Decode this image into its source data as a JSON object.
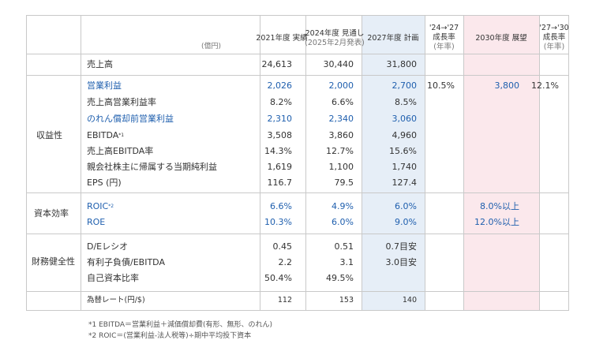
{
  "header": {
    "unit": "(億円)",
    "col1": "2021年度 実績",
    "col2_l1": "2024年度 見通し",
    "col2_l2": "(2025年2月発表)",
    "col3": "2027年度 計画",
    "col4_l1": "'24→'27",
    "col4_l2": "成長率",
    "col4_l3": "(年率)",
    "col5": "2030年度 展望",
    "col6_l1": "'27→'30",
    "col6_l2": "成長率",
    "col6_l3": "(年率)"
  },
  "sales": {
    "label": "売上高",
    "v1": "24,613",
    "v2": "30,440",
    "v3": "31,800"
  },
  "profitability": {
    "group": "収益性",
    "rows": [
      {
        "label": "営業利益",
        "v1": "2,026",
        "v2": "2,000",
        "v3": "2,700",
        "v4": "10.5%",
        "v5": "3,800",
        "v6": "12.1%"
      },
      {
        "label": "売上高営業利益率",
        "v1": "8.2%",
        "v2": "6.6%",
        "v3": "8.5%"
      },
      {
        "label": "のれん償却前営業利益",
        "v1": "2,310",
        "v2": "2,340",
        "v3": "3,060"
      },
      {
        "label": "EBITDA",
        "sup": "*1",
        "v1": "3,508",
        "v2": "3,860",
        "v3": "4,960"
      },
      {
        "label": "売上高EBITDA率",
        "v1": "14.3%",
        "v2": "12.7%",
        "v3": "15.6%"
      },
      {
        "label": "親会社株主に帰属する当期純利益",
        "v1": "1,619",
        "v2": "1,100",
        "v3": "1,740"
      },
      {
        "label": "EPS (円)",
        "v1": "116.7",
        "v2": "79.5",
        "v3": "127.4"
      }
    ]
  },
  "capital": {
    "group": "資本効率",
    "rows": [
      {
        "label": "ROIC",
        "sup": "*2",
        "v1": "6.6%",
        "v2": "4.9%",
        "v3": "6.0%",
        "v5": "8.0%以上"
      },
      {
        "label": "ROE",
        "v1": "10.3%",
        "v2": "6.0%",
        "v3": "9.0%",
        "v5": "12.0%以上"
      }
    ]
  },
  "financial": {
    "group": "財務健全性",
    "rows": [
      {
        "label": "D/Eレシオ",
        "v1": "0.45",
        "v2": "0.51",
        "v3": "0.7目安"
      },
      {
        "label": "有利子負債/EBITDA",
        "v1": "2.2",
        "v2": "3.1",
        "v3": "3.0目安"
      },
      {
        "label": "自己資本比率",
        "v1": "50.4%",
        "v2": "49.5%"
      }
    ]
  },
  "fx": {
    "label": "為替レート(円/$)",
    "v1": "112",
    "v2": "153",
    "v3": "140"
  },
  "footnotes": {
    "note1": "*1 EBITDA＝営業利益＋減価償却費(有形、無形、のれん)",
    "note2": "*2 ROIC＝(営業利益-法人税等)÷期中平均投下資本"
  }
}
